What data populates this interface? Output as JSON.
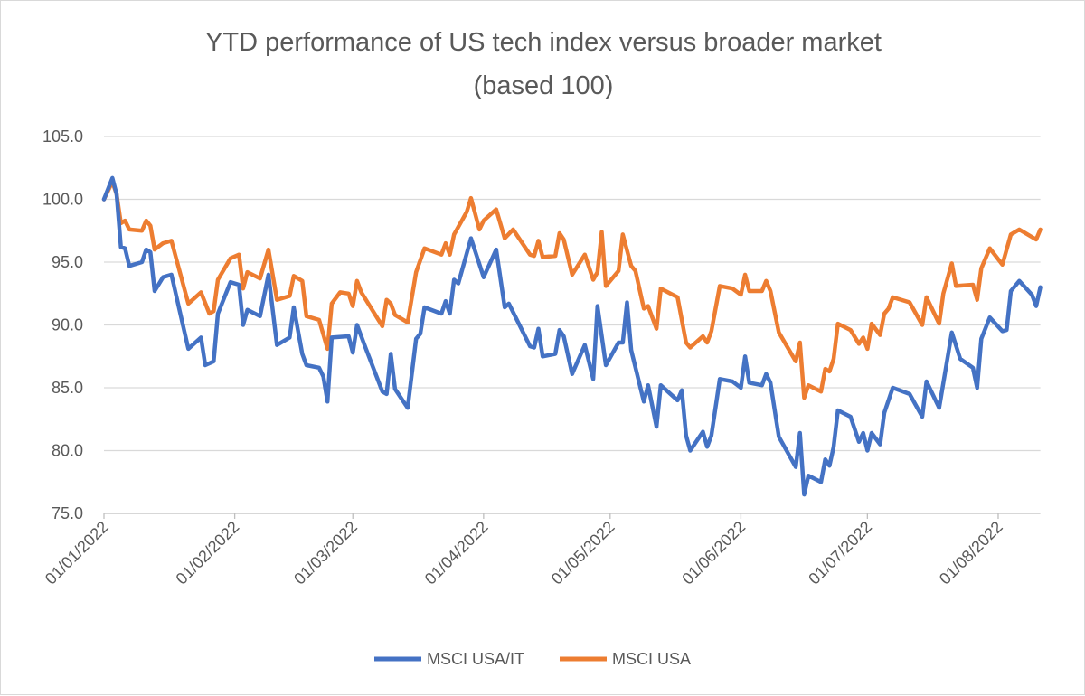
{
  "chart_data": {
    "type": "line",
    "title": "YTD performance of US tech index versus broader market",
    "subtitle": "(based 100)",
    "xlabel": "",
    "ylabel": "",
    "ylim": [
      75,
      105
    ],
    "yticks": [
      "75.0",
      "80.0",
      "85.0",
      "90.0",
      "95.0",
      "100.0",
      "105.0"
    ],
    "xticks": [
      {
        "date": "2022-01-01",
        "label": "01/01/2022"
      },
      {
        "date": "2022-02-01",
        "label": "01/02/2022"
      },
      {
        "date": "2022-03-01",
        "label": "01/03/2022"
      },
      {
        "date": "2022-04-01",
        "label": "01/04/2022"
      },
      {
        "date": "2022-05-01",
        "label": "01/05/2022"
      },
      {
        "date": "2022-06-01",
        "label": "01/06/2022"
      },
      {
        "date": "2022-07-01",
        "label": "01/07/2022"
      },
      {
        "date": "2022-08-01",
        "label": "01/08/2022"
      }
    ],
    "xlim": [
      "2022-01-01",
      "2022-08-11"
    ],
    "grid": "horizontal",
    "legend_position": "bottom",
    "series": [
      {
        "name": "MSCI USA/IT",
        "color": "#4472C4",
        "points": [
          [
            "2022-01-01",
            100.0
          ],
          [
            "2022-01-03",
            101.7
          ],
          [
            "2022-01-04",
            100.4
          ],
          [
            "2022-01-05",
            96.2
          ],
          [
            "2022-01-06",
            96.1
          ],
          [
            "2022-01-07",
            94.7
          ],
          [
            "2022-01-10",
            95.0
          ],
          [
            "2022-01-11",
            96.0
          ],
          [
            "2022-01-12",
            95.8
          ],
          [
            "2022-01-13",
            92.7
          ],
          [
            "2022-01-15",
            93.8
          ],
          [
            "2022-01-17",
            94.0
          ],
          [
            "2022-01-21",
            88.1
          ],
          [
            "2022-01-24",
            89.0
          ],
          [
            "2022-01-25",
            86.8
          ],
          [
            "2022-01-27",
            87.1
          ],
          [
            "2022-01-28",
            90.9
          ],
          [
            "2022-01-31",
            93.4
          ],
          [
            "2022-02-02",
            93.2
          ],
          [
            "2022-02-03",
            90.0
          ],
          [
            "2022-02-04",
            91.2
          ],
          [
            "2022-02-07",
            90.7
          ],
          [
            "2022-02-09",
            94.0
          ],
          [
            "2022-02-11",
            88.4
          ],
          [
            "2022-02-14",
            89.0
          ],
          [
            "2022-02-15",
            91.4
          ],
          [
            "2022-02-17",
            87.7
          ],
          [
            "2022-02-18",
            86.8
          ],
          [
            "2022-02-21",
            86.6
          ],
          [
            "2022-02-22",
            85.9
          ],
          [
            "2022-02-23",
            83.9
          ],
          [
            "2022-02-24",
            89.0
          ],
          [
            "2022-02-28",
            89.1
          ],
          [
            "2022-03-01",
            87.8
          ],
          [
            "2022-03-02",
            90.0
          ],
          [
            "2022-03-04",
            88.2
          ],
          [
            "2022-03-08",
            84.7
          ],
          [
            "2022-03-09",
            84.5
          ],
          [
            "2022-03-10",
            87.7
          ],
          [
            "2022-03-11",
            84.9
          ],
          [
            "2022-03-14",
            83.4
          ],
          [
            "2022-03-16",
            88.9
          ],
          [
            "2022-03-17",
            89.3
          ],
          [
            "2022-03-18",
            91.4
          ],
          [
            "2022-03-22",
            90.9
          ],
          [
            "2022-03-23",
            91.9
          ],
          [
            "2022-03-24",
            90.9
          ],
          [
            "2022-03-25",
            93.6
          ],
          [
            "2022-03-26",
            93.3
          ],
          [
            "2022-03-29",
            96.9
          ],
          [
            "2022-04-01",
            93.8
          ],
          [
            "2022-04-04",
            96.0
          ],
          [
            "2022-04-06",
            91.4
          ],
          [
            "2022-04-07",
            91.7
          ],
          [
            "2022-04-12",
            88.3
          ],
          [
            "2022-04-13",
            88.2
          ],
          [
            "2022-04-14",
            89.7
          ],
          [
            "2022-04-15",
            87.5
          ],
          [
            "2022-04-18",
            87.7
          ],
          [
            "2022-04-19",
            89.6
          ],
          [
            "2022-04-20",
            89.1
          ],
          [
            "2022-04-22",
            86.1
          ],
          [
            "2022-04-25",
            88.4
          ],
          [
            "2022-04-27",
            85.7
          ],
          [
            "2022-04-28",
            91.5
          ],
          [
            "2022-04-30",
            86.8
          ],
          [
            "2022-05-03",
            88.6
          ],
          [
            "2022-05-04",
            88.6
          ],
          [
            "2022-05-05",
            91.8
          ],
          [
            "2022-05-06",
            88.0
          ],
          [
            "2022-05-09",
            83.9
          ],
          [
            "2022-05-10",
            85.2
          ],
          [
            "2022-05-12",
            81.9
          ],
          [
            "2022-05-13",
            85.2
          ],
          [
            "2022-05-17",
            84.0
          ],
          [
            "2022-05-18",
            84.8
          ],
          [
            "2022-05-19",
            81.2
          ],
          [
            "2022-05-20",
            80.0
          ],
          [
            "2022-05-23",
            81.5
          ],
          [
            "2022-05-24",
            80.3
          ],
          [
            "2022-05-25",
            81.2
          ],
          [
            "2022-05-27",
            85.7
          ],
          [
            "2022-05-30",
            85.5
          ],
          [
            "2022-06-01",
            85.0
          ],
          [
            "2022-06-02",
            87.5
          ],
          [
            "2022-06-03",
            85.4
          ],
          [
            "2022-06-06",
            85.2
          ],
          [
            "2022-06-07",
            86.1
          ],
          [
            "2022-06-08",
            85.4
          ],
          [
            "2022-06-10",
            81.1
          ],
          [
            "2022-06-14",
            78.7
          ],
          [
            "2022-06-15",
            81.4
          ],
          [
            "2022-06-16",
            76.5
          ],
          [
            "2022-06-17",
            78.0
          ],
          [
            "2022-06-20",
            77.5
          ],
          [
            "2022-06-21",
            79.3
          ],
          [
            "2022-06-22",
            78.8
          ],
          [
            "2022-06-23",
            80.3
          ],
          [
            "2022-06-24",
            83.2
          ],
          [
            "2022-06-27",
            82.7
          ],
          [
            "2022-06-29",
            80.7
          ],
          [
            "2022-06-30",
            81.4
          ],
          [
            "2022-07-01",
            80.0
          ],
          [
            "2022-07-02",
            81.4
          ],
          [
            "2022-07-04",
            80.5
          ],
          [
            "2022-07-05",
            83.0
          ],
          [
            "2022-07-07",
            85.0
          ],
          [
            "2022-07-11",
            84.5
          ],
          [
            "2022-07-14",
            82.7
          ],
          [
            "2022-07-15",
            85.5
          ],
          [
            "2022-07-18",
            83.4
          ],
          [
            "2022-07-21",
            89.4
          ],
          [
            "2022-07-23",
            87.3
          ],
          [
            "2022-07-26",
            86.6
          ],
          [
            "2022-07-27",
            85.0
          ],
          [
            "2022-07-28",
            88.9
          ],
          [
            "2022-07-30",
            90.6
          ],
          [
            "2022-08-02",
            89.5
          ],
          [
            "2022-08-03",
            89.6
          ],
          [
            "2022-08-04",
            92.7
          ],
          [
            "2022-08-06",
            93.5
          ],
          [
            "2022-08-09",
            92.4
          ],
          [
            "2022-08-10",
            91.5
          ],
          [
            "2022-08-11",
            93.0
          ]
        ]
      },
      {
        "name": "MSCI USA",
        "color": "#ED7D31",
        "points": [
          [
            "2022-01-01",
            100.0
          ],
          [
            "2022-01-03",
            101.4
          ],
          [
            "2022-01-04",
            100.4
          ],
          [
            "2022-01-05",
            98.1
          ],
          [
            "2022-01-06",
            98.3
          ],
          [
            "2022-01-07",
            97.6
          ],
          [
            "2022-01-10",
            97.5
          ],
          [
            "2022-01-11",
            98.3
          ],
          [
            "2022-01-12",
            97.9
          ],
          [
            "2022-01-13",
            96.0
          ],
          [
            "2022-01-15",
            96.5
          ],
          [
            "2022-01-17",
            96.7
          ],
          [
            "2022-01-21",
            91.7
          ],
          [
            "2022-01-24",
            92.6
          ],
          [
            "2022-01-26",
            90.9
          ],
          [
            "2022-01-27",
            91.1
          ],
          [
            "2022-01-28",
            93.6
          ],
          [
            "2022-01-31",
            95.3
          ],
          [
            "2022-02-02",
            95.6
          ],
          [
            "2022-02-03",
            92.9
          ],
          [
            "2022-02-04",
            94.2
          ],
          [
            "2022-02-07",
            93.7
          ],
          [
            "2022-02-09",
            96.0
          ],
          [
            "2022-02-11",
            92.0
          ],
          [
            "2022-02-14",
            92.3
          ],
          [
            "2022-02-15",
            93.9
          ],
          [
            "2022-02-17",
            93.5
          ],
          [
            "2022-02-18",
            90.7
          ],
          [
            "2022-02-21",
            90.4
          ],
          [
            "2022-02-23",
            88.1
          ],
          [
            "2022-02-24",
            91.7
          ],
          [
            "2022-02-26",
            92.6
          ],
          [
            "2022-02-28",
            92.5
          ],
          [
            "2022-03-01",
            91.5
          ],
          [
            "2022-03-02",
            93.5
          ],
          [
            "2022-03-03",
            92.6
          ],
          [
            "2022-03-08",
            89.9
          ],
          [
            "2022-03-09",
            92.0
          ],
          [
            "2022-03-10",
            91.7
          ],
          [
            "2022-03-11",
            90.8
          ],
          [
            "2022-03-14",
            90.2
          ],
          [
            "2022-03-16",
            94.2
          ],
          [
            "2022-03-18",
            96.1
          ],
          [
            "2022-03-22",
            95.6
          ],
          [
            "2022-03-23",
            96.5
          ],
          [
            "2022-03-24",
            95.6
          ],
          [
            "2022-03-25",
            97.2
          ],
          [
            "2022-03-28",
            99.0
          ],
          [
            "2022-03-29",
            100.1
          ],
          [
            "2022-03-31",
            97.6
          ],
          [
            "2022-04-01",
            98.3
          ],
          [
            "2022-04-04",
            99.2
          ],
          [
            "2022-04-06",
            96.9
          ],
          [
            "2022-04-08",
            97.6
          ],
          [
            "2022-04-12",
            95.6
          ],
          [
            "2022-04-13",
            95.5
          ],
          [
            "2022-04-14",
            96.7
          ],
          [
            "2022-04-15",
            95.4
          ],
          [
            "2022-04-18",
            95.5
          ],
          [
            "2022-04-19",
            97.3
          ],
          [
            "2022-04-20",
            96.8
          ],
          [
            "2022-04-22",
            94.0
          ],
          [
            "2022-04-25",
            95.6
          ],
          [
            "2022-04-27",
            93.6
          ],
          [
            "2022-04-28",
            94.2
          ],
          [
            "2022-04-29",
            97.4
          ],
          [
            "2022-04-30",
            93.1
          ],
          [
            "2022-05-03",
            94.3
          ],
          [
            "2022-05-04",
            97.2
          ],
          [
            "2022-05-06",
            94.7
          ],
          [
            "2022-05-07",
            94.3
          ],
          [
            "2022-05-09",
            91.3
          ],
          [
            "2022-05-10",
            91.5
          ],
          [
            "2022-05-12",
            89.7
          ],
          [
            "2022-05-13",
            92.9
          ],
          [
            "2022-05-17",
            92.2
          ],
          [
            "2022-05-19",
            88.6
          ],
          [
            "2022-05-20",
            88.2
          ],
          [
            "2022-05-23",
            89.1
          ],
          [
            "2022-05-24",
            88.6
          ],
          [
            "2022-05-25",
            89.5
          ],
          [
            "2022-05-27",
            93.1
          ],
          [
            "2022-05-30",
            92.9
          ],
          [
            "2022-06-01",
            92.4
          ],
          [
            "2022-06-02",
            94.0
          ],
          [
            "2022-06-03",
            92.7
          ],
          [
            "2022-06-06",
            92.7
          ],
          [
            "2022-06-07",
            93.5
          ],
          [
            "2022-06-08",
            92.7
          ],
          [
            "2022-06-10",
            89.4
          ],
          [
            "2022-06-14",
            87.1
          ],
          [
            "2022-06-15",
            88.6
          ],
          [
            "2022-06-16",
            84.2
          ],
          [
            "2022-06-17",
            85.2
          ],
          [
            "2022-06-20",
            84.7
          ],
          [
            "2022-06-21",
            86.5
          ],
          [
            "2022-06-22",
            86.3
          ],
          [
            "2022-06-23",
            87.3
          ],
          [
            "2022-06-24",
            90.1
          ],
          [
            "2022-06-27",
            89.6
          ],
          [
            "2022-06-29",
            88.5
          ],
          [
            "2022-06-30",
            89.0
          ],
          [
            "2022-07-01",
            88.1
          ],
          [
            "2022-07-02",
            90.1
          ],
          [
            "2022-07-04",
            89.2
          ],
          [
            "2022-07-05",
            90.9
          ],
          [
            "2022-07-06",
            91.3
          ],
          [
            "2022-07-07",
            92.2
          ],
          [
            "2022-07-11",
            91.8
          ],
          [
            "2022-07-14",
            90.0
          ],
          [
            "2022-07-15",
            92.2
          ],
          [
            "2022-07-18",
            90.1
          ],
          [
            "2022-07-19",
            92.5
          ],
          [
            "2022-07-21",
            94.9
          ],
          [
            "2022-07-22",
            93.1
          ],
          [
            "2022-07-26",
            93.2
          ],
          [
            "2022-07-27",
            92.0
          ],
          [
            "2022-07-28",
            94.5
          ],
          [
            "2022-07-30",
            96.1
          ],
          [
            "2022-08-02",
            94.8
          ],
          [
            "2022-08-04",
            97.2
          ],
          [
            "2022-08-06",
            97.6
          ],
          [
            "2022-08-10",
            96.8
          ],
          [
            "2022-08-11",
            97.6
          ]
        ]
      }
    ]
  }
}
